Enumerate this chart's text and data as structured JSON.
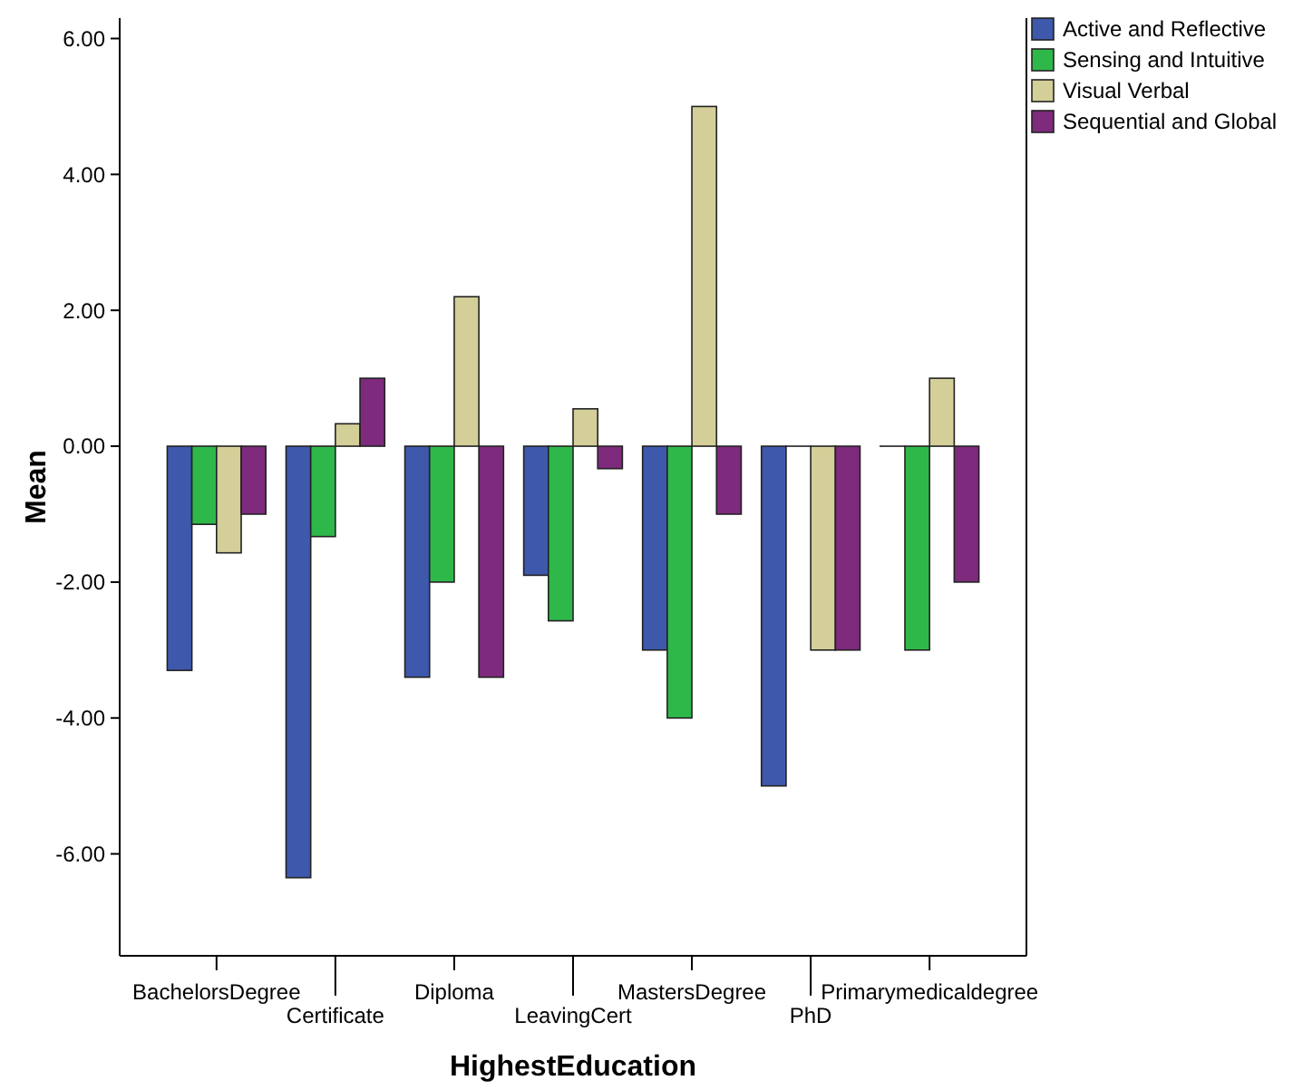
{
  "chart_data": {
    "type": "bar",
    "xlabel": "HighestEducation",
    "ylabel": "Mean",
    "categories": [
      "BachelorsDegree",
      "Certificate",
      "Diploma",
      "LeavingCert",
      "MastersDegree",
      "PhD",
      "Primarymedicaldegree"
    ],
    "series": [
      {
        "name": "Active and Reflective",
        "color": "#3e58ac",
        "values": [
          -3.3,
          -6.35,
          -3.4,
          -1.9,
          -3.0,
          -5.0,
          0
        ]
      },
      {
        "name": "Sensing and Intuitive",
        "color": "#2fb84a",
        "values": [
          -1.15,
          -1.33,
          -2.0,
          -2.57,
          -4.0,
          0,
          -3.0
        ]
      },
      {
        "name": "Visual Verbal",
        "color": "#d4cf98",
        "values": [
          -1.57,
          0.33,
          2.2,
          0.55,
          5.0,
          -3.0,
          1.0
        ]
      },
      {
        "name": "Sequential and Global",
        "color": "#7e2a7d",
        "values": [
          -1.0,
          1.0,
          -3.4,
          -0.33,
          -1.0,
          -3.0,
          -2.0
        ]
      }
    ],
    "ylim": [
      -7.5,
      6.3
    ],
    "yticks": [
      {
        "value": -6,
        "label": "-6.00"
      },
      {
        "value": -4,
        "label": "-4.00"
      },
      {
        "value": -2,
        "label": "-2.00"
      },
      {
        "value": 0,
        "label": "0.00"
      },
      {
        "value": 2,
        "label": "2.00"
      },
      {
        "value": 4,
        "label": "4.00"
      },
      {
        "value": 6,
        "label": "6.00"
      }
    ],
    "grid": false,
    "legend": "top right"
  }
}
